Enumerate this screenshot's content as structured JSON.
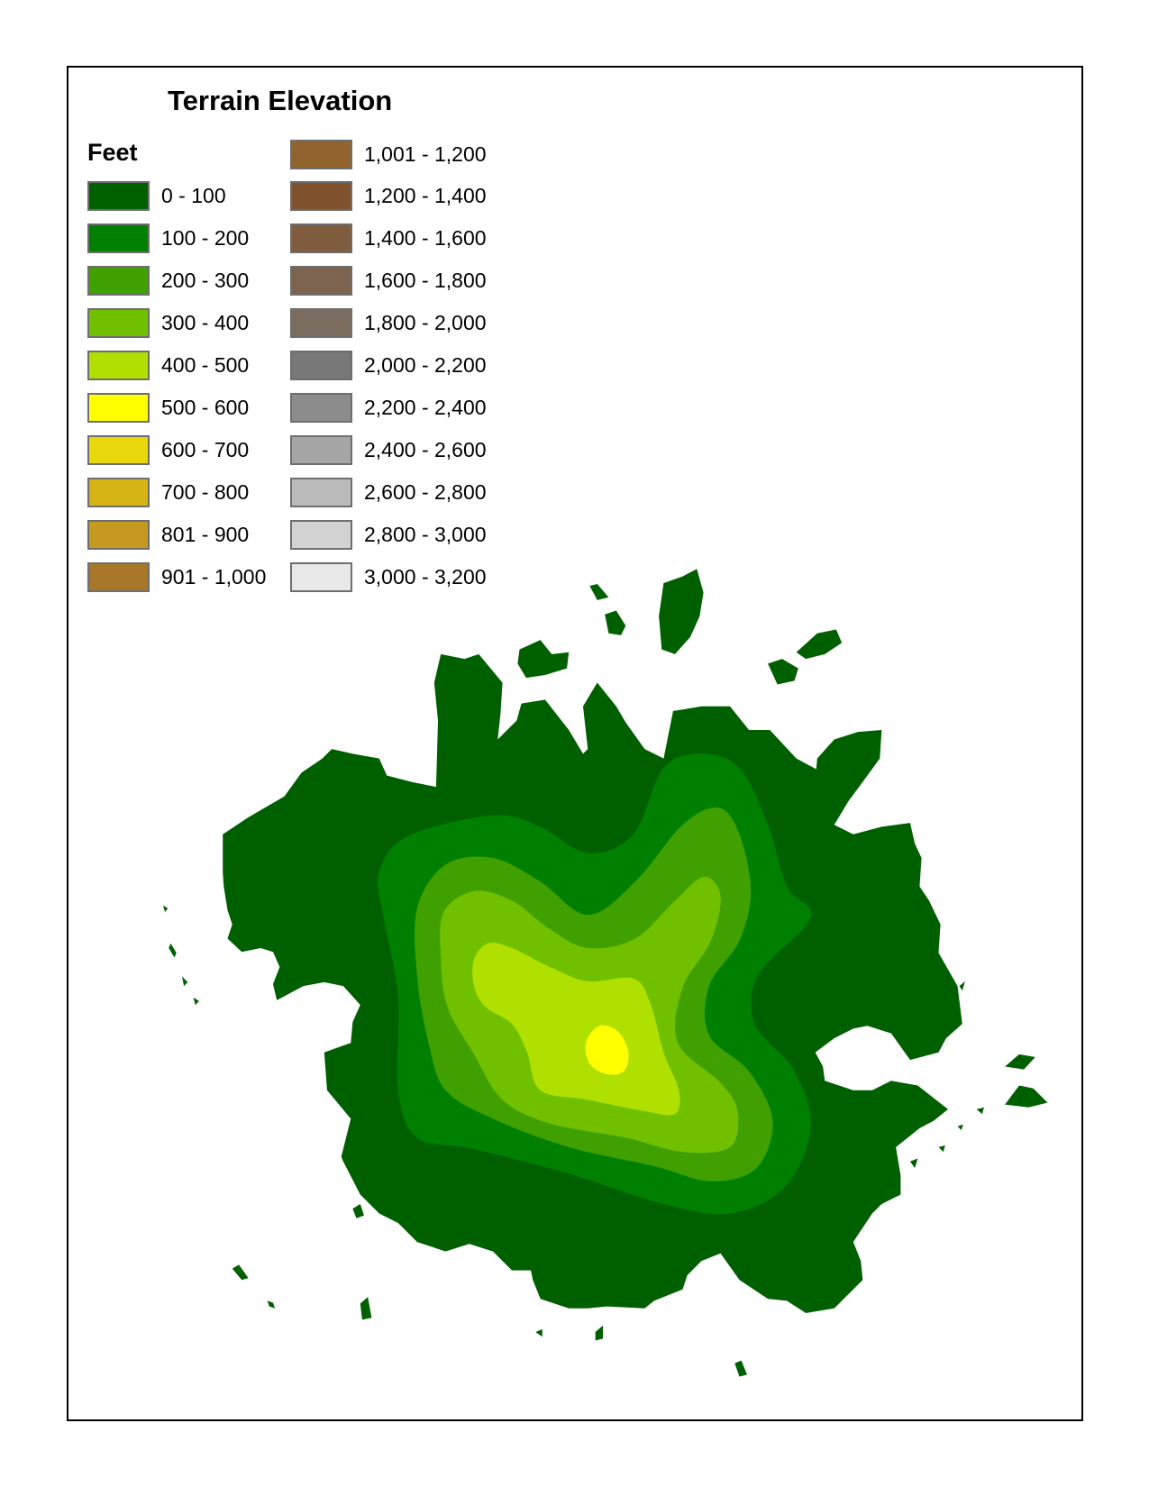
{
  "map": {
    "title": "Terrain Elevation",
    "legend": {
      "unit_label": "Feet",
      "items": [
        {
          "label": "0 - 100",
          "color": "#006000"
        },
        {
          "label": "100 - 200",
          "color": "#007f00"
        },
        {
          "label": "200 - 300",
          "color": "#3fa000"
        },
        {
          "label": "300 - 400",
          "color": "#70c000"
        },
        {
          "label": "400 - 500",
          "color": "#b0e000"
        },
        {
          "label": "500 - 600",
          "color": "#ffff00"
        },
        {
          "label": "600 - 700",
          "color": "#e8d80c"
        },
        {
          "label": "700 - 800",
          "color": "#d7b416"
        },
        {
          "label": "801 - 900",
          "color": "#c49a22"
        },
        {
          "label": "901 - 1,000",
          "color": "#a8782a"
        },
        {
          "label": "1,001 - 1,200",
          "color": "#90642c"
        },
        {
          "label": "1,200 - 1,400",
          "color": "#7f512c"
        },
        {
          "label": "1,400 - 1,600",
          "color": "#7f5c3e"
        },
        {
          "label": "1,600 - 1,800",
          "color": "#7c6350"
        },
        {
          "label": "1,800 - 2,000",
          "color": "#7a6d5f"
        },
        {
          "label": "2,000 - 2,200",
          "color": "#787878"
        },
        {
          "label": "2,200 - 2,400",
          "color": "#8c8c8c"
        },
        {
          "label": "2,400 - 2,600",
          "color": "#a5a5a5"
        },
        {
          "label": "2,600 - 2,800",
          "color": "#bbbbbb"
        },
        {
          "label": "2,800 - 3,000",
          "color": "#d2d2d2"
        },
        {
          "label": "3,000 - 3,200",
          "color": "#e8e8e8"
        }
      ]
    }
  }
}
